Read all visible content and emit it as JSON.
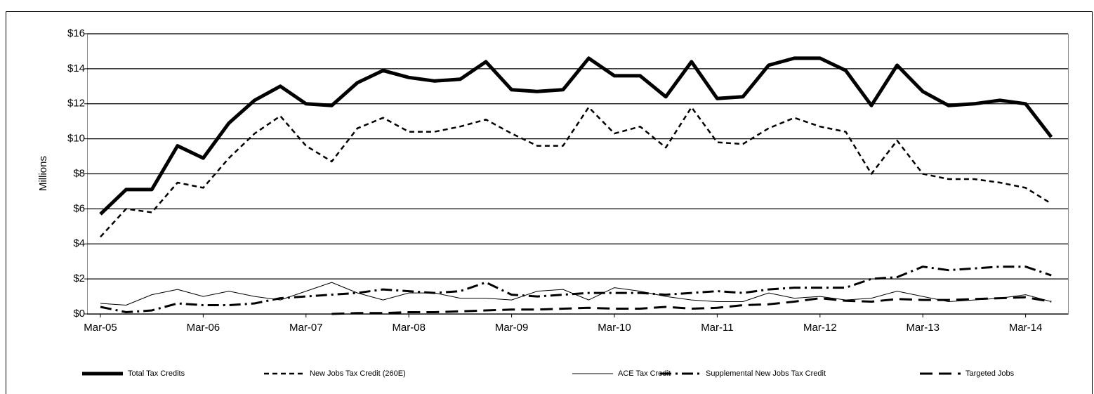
{
  "chart_data": {
    "type": "line",
    "y_label": "Millions",
    "categories": [
      "Mar-05",
      null,
      null,
      null,
      "Mar-06",
      null,
      null,
      null,
      "Mar-07",
      null,
      null,
      null,
      "Mar-08",
      null,
      null,
      null,
      "Mar-09",
      null,
      null,
      null,
      "Mar-10",
      null,
      null,
      null,
      "Mar-11",
      null,
      null,
      null,
      "Mar-12",
      null,
      null,
      null,
      "Mar-13",
      null,
      null,
      null,
      "Mar-14",
      null
    ],
    "ylim": [
      0,
      16
    ],
    "yticks": [
      {
        "value": 0,
        "label": "$0"
      },
      {
        "value": 2,
        "label": "$2"
      },
      {
        "value": 4,
        "label": "$4"
      },
      {
        "value": 6,
        "label": "$6"
      },
      {
        "value": 8,
        "label": "$8"
      },
      {
        "value": 10,
        "label": "$10"
      },
      {
        "value": 12,
        "label": "$12"
      },
      {
        "value": 14,
        "label": "$14"
      },
      {
        "value": 16,
        "label": "$16"
      }
    ],
    "grid": true,
    "legend": "bottom",
    "series": [
      {
        "name": "Total Tax Credits",
        "color": "#000000",
        "line_width": 5,
        "line_style": "solid",
        "values": [
          5.7,
          7.1,
          7.1,
          9.6,
          8.9,
          10.9,
          12.2,
          13.0,
          12.0,
          11.9,
          13.2,
          13.9,
          13.5,
          13.3,
          13.4,
          14.4,
          12.8,
          12.7,
          12.8,
          14.6,
          13.6,
          13.6,
          12.4,
          14.4,
          12.3,
          12.4,
          14.2,
          14.6,
          14.6,
          13.9,
          11.9,
          14.2,
          12.7,
          11.9,
          12.0,
          12.2,
          12.0,
          10.1
        ]
      },
      {
        "name": "New Jobs Tax Credit (260E)",
        "color": "#000000",
        "line_width": 2.5,
        "line_style": "dash",
        "values": [
          4.4,
          6.0,
          5.8,
          7.5,
          7.2,
          8.9,
          10.3,
          11.3,
          9.6,
          8.7,
          10.6,
          11.2,
          10.4,
          10.4,
          10.7,
          11.1,
          10.3,
          9.6,
          9.6,
          11.8,
          10.3,
          10.7,
          9.5,
          11.8,
          9.8,
          9.7,
          10.6,
          11.2,
          10.7,
          10.4,
          8.0,
          9.9,
          8.0,
          7.7,
          7.7,
          7.5,
          7.2,
          6.3
        ]
      },
      {
        "name": "ACE Tax Credit",
        "color": "#000000",
        "line_width": 1,
        "line_style": "solid",
        "values": [
          0.6,
          0.5,
          1.1,
          1.4,
          1.0,
          1.3,
          1.0,
          0.8,
          1.3,
          1.8,
          1.2,
          0.8,
          1.2,
          1.2,
          0.9,
          0.9,
          0.8,
          1.3,
          1.4,
          0.8,
          1.5,
          1.3,
          1.0,
          0.8,
          0.7,
          0.7,
          1.2,
          0.9,
          1.0,
          0.8,
          0.9,
          1.3,
          1.0,
          0.7,
          0.8,
          0.9,
          1.1,
          0.7
        ]
      },
      {
        "name": "Supplemental New Jobs Tax Credit",
        "color": "#000000",
        "line_width": 3,
        "line_style": "dashdot",
        "values": [
          0.4,
          0.1,
          0.2,
          0.6,
          0.5,
          0.5,
          0.6,
          0.9,
          1.0,
          1.1,
          1.2,
          1.4,
          1.3,
          1.2,
          1.3,
          1.8,
          1.1,
          1.0,
          1.1,
          1.2,
          1.2,
          1.2,
          1.1,
          1.2,
          1.3,
          1.2,
          1.4,
          1.5,
          1.5,
          1.5,
          2.0,
          2.1,
          2.7,
          2.5,
          2.6,
          2.7,
          2.7,
          2.2
        ]
      },
      {
        "name": "Targeted Jobs",
        "color": "#000000",
        "line_width": 3,
        "line_style": "longdash",
        "values": [
          null,
          null,
          null,
          null,
          null,
          null,
          null,
          null,
          null,
          0.0,
          0.05,
          0.05,
          0.1,
          0.1,
          0.15,
          0.2,
          0.25,
          0.25,
          0.3,
          0.35,
          0.3,
          0.3,
          0.4,
          0.3,
          0.35,
          0.5,
          0.55,
          0.7,
          0.9,
          0.75,
          0.7,
          0.85,
          0.8,
          0.8,
          0.85,
          0.9,
          0.95,
          0.7
        ]
      }
    ]
  }
}
